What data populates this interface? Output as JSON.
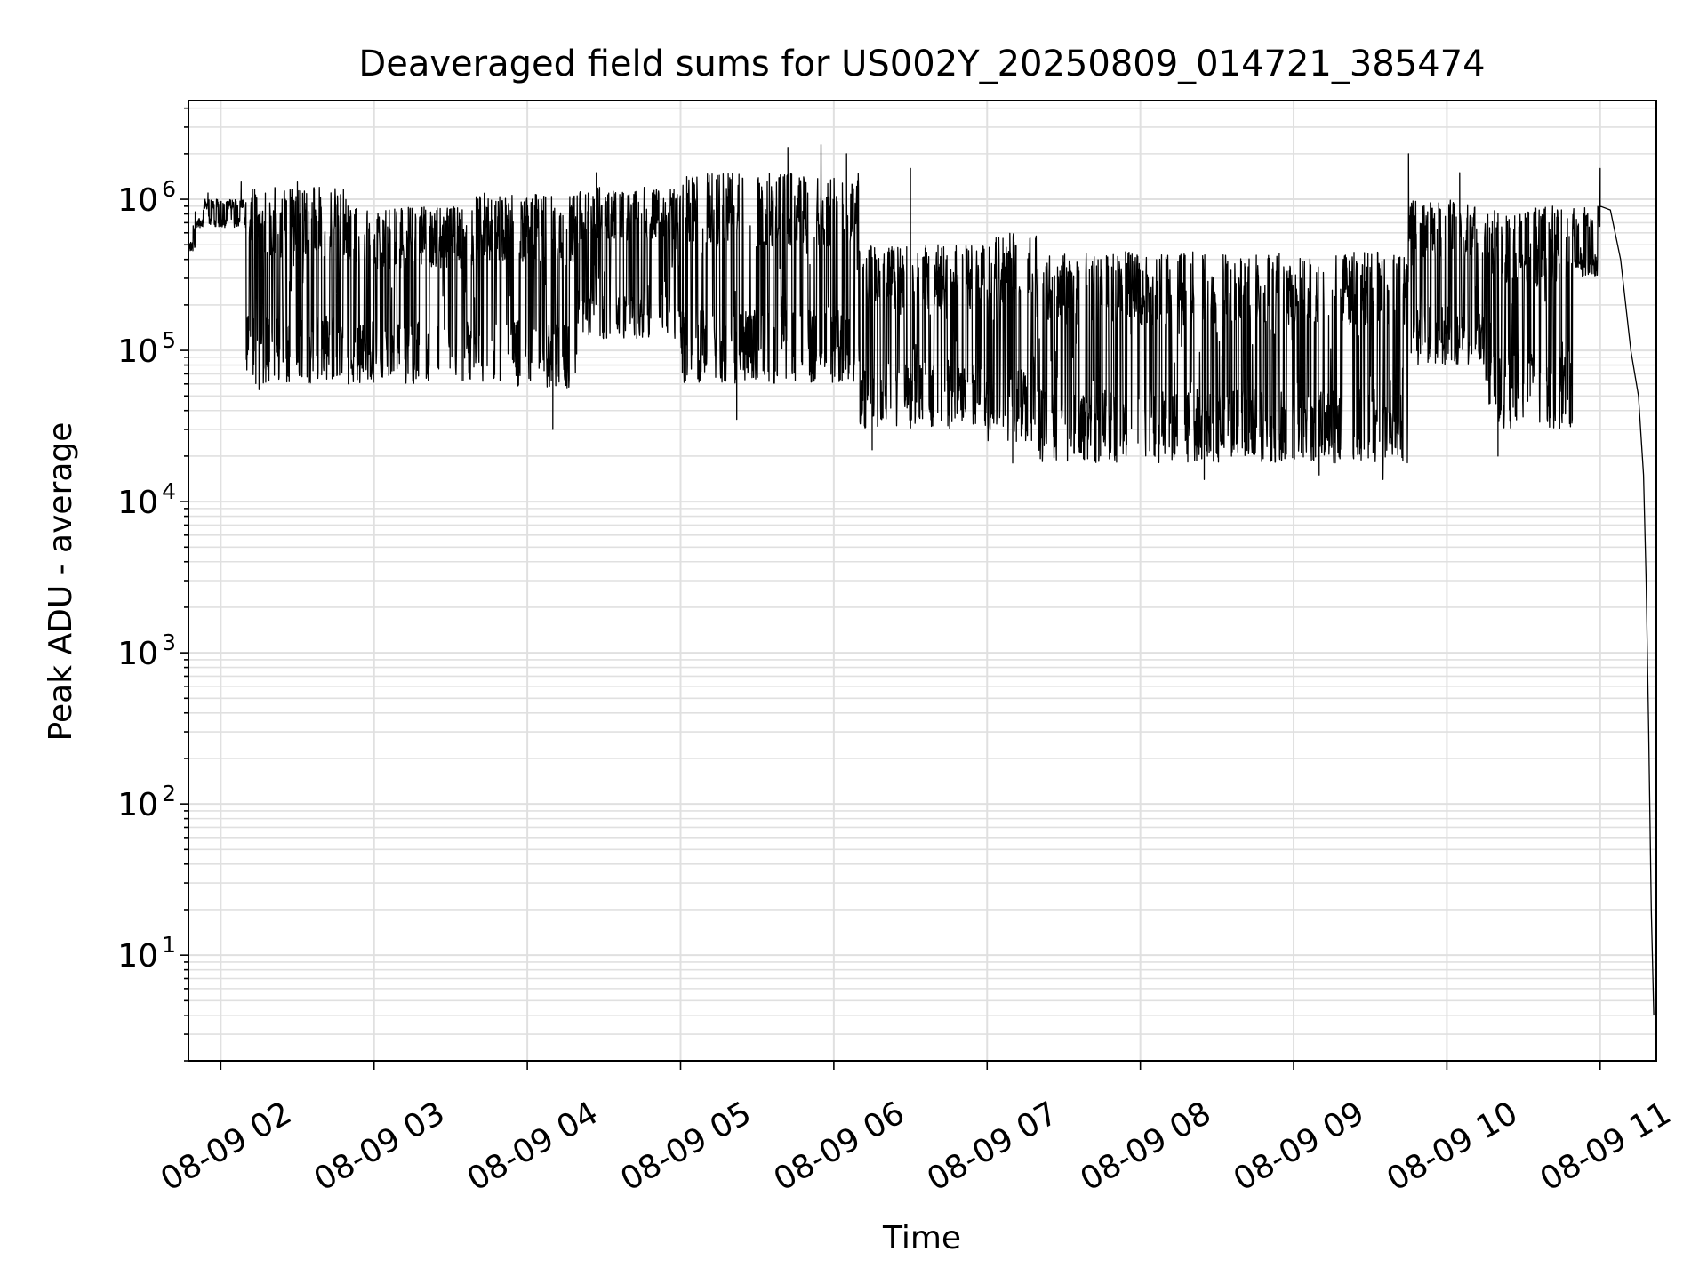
{
  "chart_data": {
    "type": "line",
    "title": "Deaveraged field sums for US002Y_20250809_014721_385474",
    "xlabel": "Time",
    "ylabel": "Peak ADU - average",
    "yscale": "log",
    "ylim": [
      2,
      4500000
    ],
    "xlim": [
      "2025-08-09 01:47:21",
      "2025-08-09 11:22:00"
    ],
    "grid": true,
    "line_color": "#000000",
    "grid_color": "#e0e0e0",
    "x_ticks": [
      {
        "t": "2025-08-09 02:00",
        "label": "08-09 02"
      },
      {
        "t": "2025-08-09 03:00",
        "label": "08-09 03"
      },
      {
        "t": "2025-08-09 04:00",
        "label": "08-09 04"
      },
      {
        "t": "2025-08-09 05:00",
        "label": "08-09 05"
      },
      {
        "t": "2025-08-09 06:00",
        "label": "08-09 06"
      },
      {
        "t": "2025-08-09 07:00",
        "label": "08-09 07"
      },
      {
        "t": "2025-08-09 08:00",
        "label": "08-09 08"
      },
      {
        "t": "2025-08-09 09:00",
        "label": "08-09 09"
      },
      {
        "t": "2025-08-09 10:00",
        "label": "08-09 10"
      },
      {
        "t": "2025-08-09 11:00",
        "label": "08-09 11"
      }
    ],
    "y_ticks": [
      {
        "value": 10,
        "base": "10",
        "exp": "1"
      },
      {
        "value": 100,
        "base": "10",
        "exp": "2"
      },
      {
        "value": 1000,
        "base": "10",
        "exp": "3"
      },
      {
        "value": 10000,
        "base": "10",
        "exp": "4"
      },
      {
        "value": 100000,
        "base": "10",
        "exp": "5"
      },
      {
        "value": 1000000,
        "base": "10",
        "exp": "6"
      }
    ],
    "series": [
      {
        "segments": [
          {
            "start": "2025-08-09 01:47:21",
            "end": "2025-08-09 01:50",
            "low": 450000,
            "high": 700000
          },
          {
            "start": "2025-08-09 01:50",
            "end": "2025-08-09 02:10",
            "low": 650000,
            "high": 1000000
          },
          {
            "start": "2025-08-09 02:10",
            "end": "2025-08-09 02:50",
            "low": 60000,
            "high": 1200000
          },
          {
            "start": "2025-08-09 02:50",
            "end": "2025-08-09 03:40",
            "low": 60000,
            "high": 900000
          },
          {
            "start": "2025-08-09 03:40",
            "end": "2025-08-09 04:20",
            "low": 55000,
            "high": 1100000
          },
          {
            "start": "2025-08-09 04:20",
            "end": "2025-08-09 05:00",
            "low": 120000,
            "high": 1200000
          },
          {
            "start": "2025-08-09 05:00",
            "end": "2025-08-09 06:10",
            "low": 60000,
            "high": 1500000
          },
          {
            "start": "2025-08-09 06:10",
            "end": "2025-08-09 07:00",
            "low": 30000,
            "high": 500000
          },
          {
            "start": "2025-08-09 07:00",
            "end": "2025-08-09 07:20",
            "low": 25000,
            "high": 600000
          },
          {
            "start": "2025-08-09 07:20",
            "end": "2025-08-09 09:45",
            "low": 18000,
            "high": 450000
          },
          {
            "start": "2025-08-09 09:45",
            "end": "2025-08-09 10:15",
            "low": 80000,
            "high": 1000000
          },
          {
            "start": "2025-08-09 10:15",
            "end": "2025-08-09 10:50",
            "low": 30000,
            "high": 900000
          },
          {
            "start": "2025-08-09 10:50",
            "end": "2025-08-09 11:00",
            "low": 300000,
            "high": 900000
          }
        ],
        "peaks": [
          {
            "t": "2025-08-09 01:55",
            "y": 1100000
          },
          {
            "t": "2025-08-09 02:08",
            "y": 1300000
          },
          {
            "t": "2025-08-09 02:30",
            "y": 1300000
          },
          {
            "t": "2025-08-09 04:27",
            "y": 1500000
          },
          {
            "t": "2025-08-09 05:42",
            "y": 2200000
          },
          {
            "t": "2025-08-09 05:55",
            "y": 2300000
          },
          {
            "t": "2025-08-09 06:05",
            "y": 2000000
          },
          {
            "t": "2025-08-09 06:30",
            "y": 1600000
          },
          {
            "t": "2025-08-09 09:45",
            "y": 2000000
          },
          {
            "t": "2025-08-09 10:05",
            "y": 1500000
          },
          {
            "t": "2025-08-09 11:00",
            "y": 1600000
          }
        ],
        "dips": [
          {
            "t": "2025-08-09 02:15",
            "y": 55000
          },
          {
            "t": "2025-08-09 04:10",
            "y": 30000
          },
          {
            "t": "2025-08-09 05:22",
            "y": 35000
          },
          {
            "t": "2025-08-09 06:15",
            "y": 22000
          },
          {
            "t": "2025-08-09 07:10",
            "y": 18000
          },
          {
            "t": "2025-08-09 08:25",
            "y": 14000
          },
          {
            "t": "2025-08-09 09:10",
            "y": 15000
          },
          {
            "t": "2025-08-09 09:35",
            "y": 14000
          },
          {
            "t": "2025-08-09 10:20",
            "y": 20000
          }
        ],
        "tail": [
          {
            "t": "2025-08-09 11:00",
            "y": 900000
          },
          {
            "t": "2025-08-09 11:04",
            "y": 850000
          },
          {
            "t": "2025-08-09 11:08",
            "y": 400000
          },
          {
            "t": "2025-08-09 11:12",
            "y": 100000
          },
          {
            "t": "2025-08-09 11:15",
            "y": 50000
          },
          {
            "t": "2025-08-09 11:17",
            "y": 15000
          },
          {
            "t": "2025-08-09 11:18",
            "y": 3000
          },
          {
            "t": "2025-08-09 11:19",
            "y": 300
          },
          {
            "t": "2025-08-09 11:20",
            "y": 20
          },
          {
            "t": "2025-08-09 11:21",
            "y": 4
          }
        ]
      }
    ]
  }
}
